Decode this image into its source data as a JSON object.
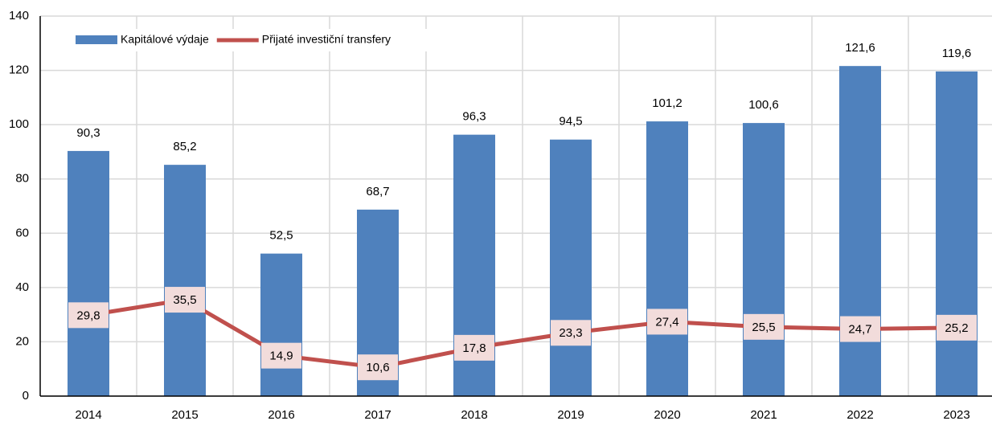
{
  "chart_data": {
    "type": "bar_line",
    "categories": [
      "2014",
      "2015",
      "2016",
      "2017",
      "2018",
      "2019",
      "2020",
      "2021",
      "2022",
      "2023"
    ],
    "series": [
      {
        "name": "Kapitálové výdaje",
        "type": "bar",
        "color": "#4f81bd",
        "values": [
          90.3,
          85.2,
          52.5,
          68.7,
          96.3,
          94.5,
          101.2,
          100.6,
          121.6,
          119.6
        ],
        "value_labels": [
          "90,3",
          "85,2",
          "52,5",
          "68,7",
          "96,3",
          "94,5",
          "101,2",
          "100,6",
          "121,6",
          "119,6"
        ]
      },
      {
        "name": "Přijaté investiční transfery",
        "type": "line",
        "color": "#c0504d",
        "values": [
          29.8,
          35.5,
          14.9,
          10.6,
          17.8,
          23.3,
          27.4,
          25.5,
          24.7,
          25.2
        ],
        "value_labels": [
          "29,8",
          "35,5",
          "14,9",
          "10,6",
          "17,8",
          "23,3",
          "27,4",
          "25,5",
          "24,7",
          "25,2"
        ]
      }
    ],
    "ylim": [
      0,
      140
    ],
    "yticks": [
      0,
      20,
      40,
      60,
      80,
      100,
      120,
      140
    ],
    "grid": true,
    "legend": "top-left"
  }
}
